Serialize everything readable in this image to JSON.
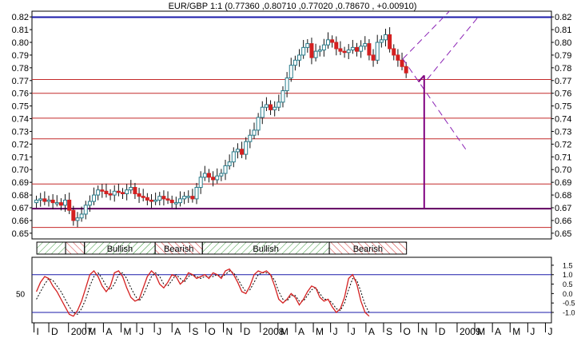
{
  "chart_data": {
    "type": "candlestick",
    "title": "EUR/GBP 1:1 (0.77360 ,0.80710 ,0.77020 ,0.78670 , +0.00910)",
    "instrument": "EUR/GBP",
    "y_ticks": [
      0.82,
      0.81,
      0.8,
      0.79,
      0.78,
      0.77,
      0.76,
      0.75,
      0.74,
      0.73,
      0.72,
      0.71,
      0.7,
      0.69,
      0.68,
      0.67,
      0.66,
      0.65
    ],
    "ylim": [
      0.6455,
      0.8245
    ],
    "x_labels": [
      {
        "label": "I",
        "week": 0.3
      },
      {
        "label": "D",
        "week": 3.9
      },
      {
        "label": "2007",
        "week": 8.7
      },
      {
        "label": "M",
        "week": 12.9
      },
      {
        "label": "A",
        "week": 17.2
      },
      {
        "label": "M",
        "week": 21.5
      },
      {
        "label": "J",
        "week": 25.3
      },
      {
        "label": "J",
        "week": 29.6
      },
      {
        "label": "A",
        "week": 33.9
      },
      {
        "label": "S",
        "week": 38.2
      },
      {
        "label": "O",
        "week": 42.1
      },
      {
        "label": "N",
        "week": 46.4
      },
      {
        "label": "D",
        "week": 50.7
      },
      {
        "label": "2008",
        "week": 55.4
      },
      {
        "label": "M",
        "week": 59.7
      },
      {
        "label": "A",
        "week": 64.0
      },
      {
        "label": "M",
        "week": 68.3
      },
      {
        "label": "J",
        "week": 72.5
      },
      {
        "label": "J",
        "week": 76.8
      },
      {
        "label": "A",
        "week": 81.1
      },
      {
        "label": "S",
        "week": 85.4
      },
      {
        "label": "O",
        "week": 89.6
      },
      {
        "label": "N",
        "week": 93.9
      },
      {
        "label": "D",
        "week": 98.2
      },
      {
        "label": "2009",
        "week": 103.3
      },
      {
        "label": "M",
        "week": 107.6
      },
      {
        "label": "A",
        "week": 111.9
      },
      {
        "label": "M",
        "week": 116.2
      },
      {
        "label": "J",
        "week": 120.5
      },
      {
        "label": "J",
        "week": 124.8
      }
    ],
    "candles_weekly_close": [
      0.676,
      0.677,
      0.675,
      0.676,
      0.674,
      0.674,
      0.672,
      0.676,
      0.668,
      0.66,
      0.662,
      0.665,
      0.672,
      0.675,
      0.68,
      0.684,
      0.683,
      0.681,
      0.68,
      0.683,
      0.682,
      0.681,
      0.684,
      0.686,
      0.681,
      0.679,
      0.678,
      0.676,
      0.675,
      0.676,
      0.679,
      0.677,
      0.676,
      0.674,
      0.674,
      0.677,
      0.679,
      0.679,
      0.677,
      0.686,
      0.694,
      0.697,
      0.694,
      0.692,
      0.695,
      0.697,
      0.703,
      0.706,
      0.714,
      0.716,
      0.712,
      0.722,
      0.727,
      0.731,
      0.741,
      0.749,
      0.751,
      0.747,
      0.749,
      0.753,
      0.762,
      0.772,
      0.782,
      0.786,
      0.79,
      0.796,
      0.799,
      0.788,
      0.793,
      0.794,
      0.798,
      0.802,
      0.8,
      0.795,
      0.793,
      0.792,
      0.794,
      0.796,
      0.793,
      0.797,
      0.799,
      0.79,
      0.786,
      0.8,
      0.802,
      0.806,
      0.795,
      0.79,
      0.786,
      0.781,
      0.776
    ],
    "horizontal_lines": [
      {
        "y": 0.8198,
        "color": "#1a1aaa"
      },
      {
        "y": 0.7708,
        "color": "#c42a2a"
      },
      {
        "y": 0.76,
        "color": "#c42a2a"
      },
      {
        "y": 0.7404,
        "color": "#c42a2a"
      },
      {
        "y": 0.7242,
        "color": "#c42a2a"
      },
      {
        "y": 0.6887,
        "color": "#c42a2a"
      },
      {
        "y": 0.6693,
        "color": "#600060"
      },
      {
        "y": 0.6545,
        "color": "#c42a2a"
      }
    ],
    "trend_channel": [
      {
        "x1": 89.7,
        "y1": 0.787,
        "x2": 103.3,
        "y2": 0.832
      },
      {
        "x1": 95.6,
        "y1": 0.7708,
        "x2": 108.0,
        "y2": 0.8198
      },
      {
        "x1": 89.7,
        "y1": 0.787,
        "x2": 105.0,
        "y2": 0.716
      }
    ],
    "target_marker": {
      "week": 94.9,
      "from": 0.774,
      "to": 0.6693,
      "arm_to_week": 93.5
    },
    "phase_bands": [
      {
        "label": "",
        "kind": "bullish",
        "from_week": 0.6,
        "to_week": 7.6
      },
      {
        "label": "",
        "kind": "bearish",
        "from_week": 7.6,
        "to_week": 12.2
      },
      {
        "label": "Bullish",
        "kind": "bullish",
        "from_week": 12.2,
        "to_week": 29.4
      },
      {
        "label": "Bearish",
        "kind": "bearish",
        "from_week": 29.4,
        "to_week": 40.9
      },
      {
        "label": "Bullish",
        "kind": "bullish",
        "from_week": 40.9,
        "to_week": 71.8
      },
      {
        "label": "Bearish",
        "kind": "bearish",
        "from_week": 71.8,
        "to_week": 90.6
      }
    ],
    "oscillator": {
      "y_ticks_right": [
        "1.5",
        "1.0",
        "0.5",
        "0.0",
        "-0.5",
        "-1.0"
      ],
      "y_tick_values": [
        1.5,
        1.0,
        0.5,
        0.0,
        -0.5,
        -1.0
      ],
      "left_label": "50",
      "left_label_value": 0.0,
      "ylim": [
        -1.55,
        1.92
      ],
      "bands": [
        1.0,
        -1.0
      ],
      "fast": [
        0.1,
        0.6,
        0.9,
        0.8,
        0.4,
        0.1,
        -0.3,
        -0.7,
        -1.1,
        -1.2,
        -0.9,
        -0.4,
        0.3,
        1.0,
        1.2,
        0.9,
        0.4,
        0.1,
        0.4,
        1.1,
        1.2,
        0.9,
        0.3,
        -0.2,
        -0.4,
        -0.3,
        0.3,
        0.9,
        1.2,
        1.0,
        0.5,
        0.3,
        0.6,
        1.0,
        0.9,
        0.5,
        0.7,
        1.1,
        1.0,
        0.8,
        0.9,
        1.0,
        0.8,
        1.1,
        1.0,
        0.8,
        1.2,
        1.3,
        1.0,
        0.6,
        0.1,
        0.0,
        0.4,
        1.0,
        1.2,
        1.1,
        1.2,
        1.0,
        0.4,
        -0.3,
        -0.5,
        -0.3,
        0.0,
        -0.2,
        -0.6,
        -0.3,
        0.1,
        0.4,
        0.3,
        -0.2,
        -0.4,
        -0.3,
        -0.7,
        -1.0,
        -0.8,
        -0.2,
        0.8,
        1.0,
        0.5,
        -0.4,
        -1.0,
        -1.2
      ],
      "slow": [
        -0.3,
        0.1,
        0.5,
        0.8,
        0.7,
        0.4,
        0.1,
        -0.3,
        -0.7,
        -1.0,
        -1.1,
        -0.8,
        -0.3,
        0.4,
        0.9,
        1.1,
        0.8,
        0.4,
        0.2,
        0.5,
        1.0,
        1.1,
        0.8,
        0.3,
        -0.1,
        -0.4,
        -0.1,
        0.4,
        0.9,
        1.1,
        0.9,
        0.5,
        0.4,
        0.7,
        1.0,
        0.8,
        0.6,
        0.9,
        1.0,
        0.9,
        0.8,
        0.9,
        0.9,
        0.9,
        1.0,
        0.9,
        1.0,
        1.2,
        1.1,
        0.8,
        0.4,
        0.1,
        0.2,
        0.6,
        1.0,
        1.1,
        1.1,
        1.0,
        0.7,
        0.1,
        -0.3,
        -0.4,
        -0.1,
        -0.1,
        -0.4,
        -0.4,
        -0.1,
        0.2,
        0.3,
        0.0,
        -0.3,
        -0.3,
        -0.5,
        -0.8,
        -0.9,
        -0.5,
        0.2,
        0.8,
        0.7,
        0.1,
        -0.6,
        -1.0
      ]
    },
    "colors": {
      "up_candle": "#2a7d8c",
      "down_candle": "#d42020",
      "wick": "#111111",
      "resistance": "#c42a2a",
      "top_line": "#1a1aaa",
      "target": "#800080",
      "channel": "#8b22b5",
      "bullish_hatch": "#3a9a3a",
      "bearish_hatch": "#d43030",
      "osc_fast": "#d42020",
      "osc_slow": "#000000",
      "osc_band": "#1a1aaa",
      "grid_tick": "#000000"
    }
  }
}
